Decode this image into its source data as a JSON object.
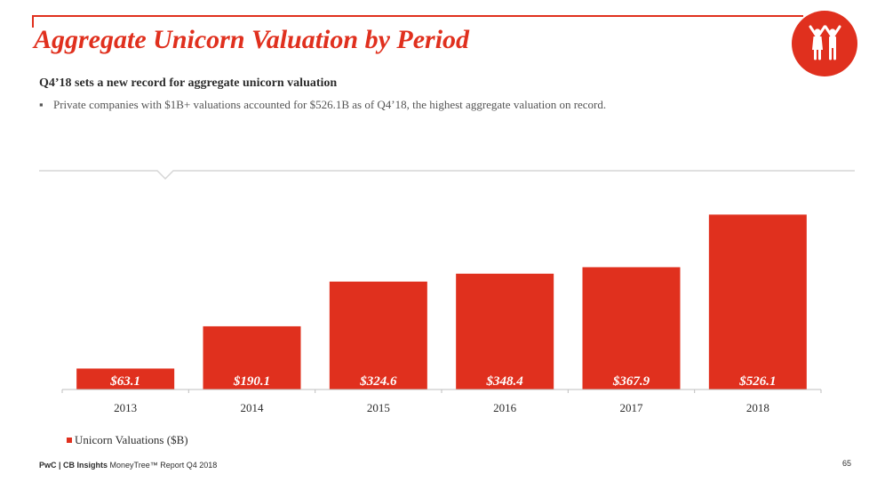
{
  "slide": {
    "title": "Aggregate Unicorn Valuation by Period",
    "subtitle": "Q4’18 sets a new record for aggregate unicorn valuation",
    "bullet": "Private companies with $1B+ valuations accounted for $526.1B as of Q4’18, the highest aggregate valuation on record.",
    "footer_brand": "PwC | CB Insights",
    "footer_report": "MoneyTree™ Report Q4 2018",
    "page_number": "65"
  },
  "colors": {
    "accent": "#e0301e",
    "bar": "#e0301e",
    "text": "#2d2d2d"
  },
  "icons": {
    "logo": "two-people-cheering-icon"
  },
  "chart_data": {
    "type": "bar",
    "title": "",
    "categories": [
      "2013",
      "2014",
      "2015",
      "2016",
      "2017",
      "2018"
    ],
    "series": [
      {
        "name": "Unicorn Valuations ($B)",
        "values": [
          63.1,
          190.1,
          324.6,
          348.4,
          367.9,
          526.1
        ],
        "labels": [
          "$63.1",
          "$190.1",
          "$324.6",
          "$348.4",
          "$367.9",
          "$526.1"
        ]
      }
    ],
    "xlabel": "",
    "ylabel": "",
    "ylim": [
      0,
      535
    ],
    "grid": false,
    "legend_position": "bottom-left"
  }
}
